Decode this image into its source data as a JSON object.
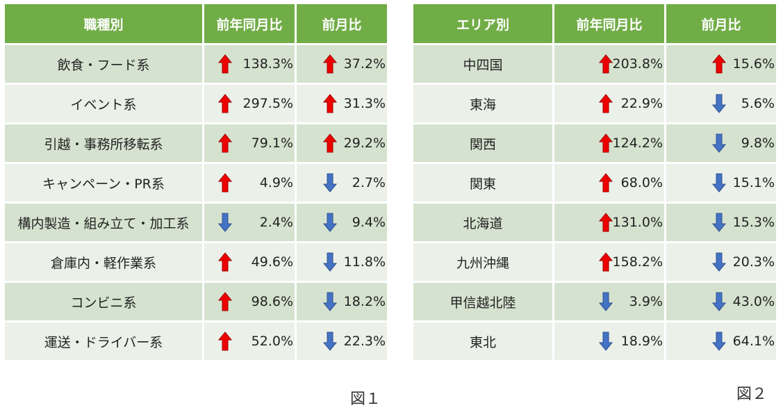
{
  "colors": {
    "header": "#71ad47",
    "row_odd": "#d5e2cf",
    "row_even": "#ebf0e9",
    "up": "#ee0000",
    "down": "#4472c4"
  },
  "table1": {
    "headers": [
      "職種別",
      "前年同月比",
      "前月比"
    ],
    "rows": [
      {
        "category": "飲食・フード系",
        "yoy": "138.3%",
        "yoy_dir": "up",
        "mom": "37.2%",
        "mom_dir": "up"
      },
      {
        "category": "イベント系",
        "yoy": "297.5%",
        "yoy_dir": "up",
        "mom": "31.3%",
        "mom_dir": "up"
      },
      {
        "category": "引越・事務所移転系",
        "yoy": "79.1%",
        "yoy_dir": "up",
        "mom": "29.2%",
        "mom_dir": "up"
      },
      {
        "category": "キャンペーン・PR系",
        "yoy": "4.9%",
        "yoy_dir": "up",
        "mom": "2.7%",
        "mom_dir": "down"
      },
      {
        "category": "構内製造・組み立て・加工系",
        "yoy": "2.4%",
        "yoy_dir": "down",
        "mom": "9.4%",
        "mom_dir": "down"
      },
      {
        "category": "倉庫内・軽作業系",
        "yoy": "49.6%",
        "yoy_dir": "up",
        "mom": "11.8%",
        "mom_dir": "down"
      },
      {
        "category": "コンビニ系",
        "yoy": "98.6%",
        "yoy_dir": "up",
        "mom": "18.2%",
        "mom_dir": "down"
      },
      {
        "category": "運送・ドライバー系",
        "yoy": "52.0%",
        "yoy_dir": "up",
        "mom": "22.3%",
        "mom_dir": "down"
      }
    ],
    "caption": "図１"
  },
  "table2": {
    "headers": [
      "エリア別",
      "前年同月比",
      "前月比"
    ],
    "rows": [
      {
        "category": "中四国",
        "yoy": "203.8%",
        "yoy_dir": "up",
        "mom": "15.6%",
        "mom_dir": "up"
      },
      {
        "category": "東海",
        "yoy": "22.9%",
        "yoy_dir": "up",
        "mom": "5.6%",
        "mom_dir": "down"
      },
      {
        "category": "関西",
        "yoy": "124.2%",
        "yoy_dir": "up",
        "mom": "9.8%",
        "mom_dir": "down"
      },
      {
        "category": "関東",
        "yoy": "68.0%",
        "yoy_dir": "up",
        "mom": "15.1%",
        "mom_dir": "down"
      },
      {
        "category": "北海道",
        "yoy": "131.0%",
        "yoy_dir": "up",
        "mom": "15.3%",
        "mom_dir": "down"
      },
      {
        "category": "九州沖縄",
        "yoy": "158.2%",
        "yoy_dir": "up",
        "mom": "20.3%",
        "mom_dir": "down"
      },
      {
        "category": "甲信越北陸",
        "yoy": "3.9%",
        "yoy_dir": "down",
        "mom": "43.0%",
        "mom_dir": "down"
      },
      {
        "category": "東北",
        "yoy": "18.9%",
        "yoy_dir": "down",
        "mom": "64.1%",
        "mom_dir": "down"
      }
    ],
    "caption": "図２"
  }
}
